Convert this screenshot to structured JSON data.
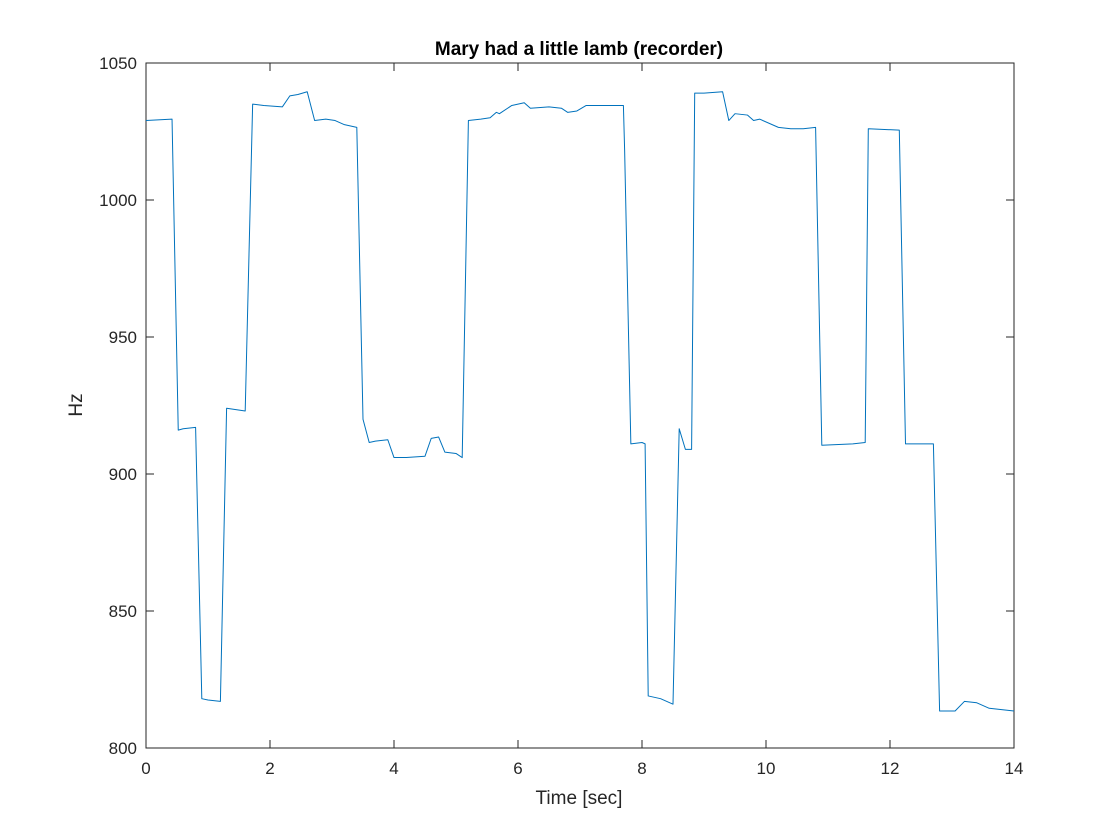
{
  "chart_data": {
    "type": "line",
    "title": "Mary had a little lamb (recorder)",
    "xlabel": "Time [sec]",
    "ylabel": "Hz",
    "xlim": [
      0,
      14
    ],
    "ylim": [
      800,
      1050
    ],
    "xticks": [
      0,
      2,
      4,
      6,
      8,
      10,
      12,
      14
    ],
    "yticks": [
      800,
      850,
      900,
      950,
      1000,
      1050
    ],
    "grid": false,
    "line_color": "#0072BD",
    "series": [
      {
        "x": [
          0,
          0.42,
          0.52,
          0.6,
          0.8,
          0.9,
          1.0,
          1.2,
          1.3,
          1.45,
          1.6,
          1.72,
          1.9,
          2.2,
          2.32,
          2.45,
          2.6,
          2.72,
          2.9,
          3.05,
          3.2,
          3.4,
          3.5,
          3.6,
          3.7,
          3.9,
          4.0,
          4.2,
          4.5,
          4.6,
          4.72,
          4.82,
          5.0,
          5.1,
          5.2,
          5.4,
          5.55,
          5.65,
          5.7,
          5.9,
          6.1,
          6.2,
          6.5,
          6.7,
          6.8,
          6.95,
          7.1,
          7.7,
          7.72,
          7.82,
          8.0,
          8.05,
          8.1,
          8.2,
          8.3,
          8.5,
          8.6,
          8.7,
          8.8,
          8.85,
          9.0,
          9.3,
          9.4,
          9.5,
          9.7,
          9.8,
          9.9,
          10.2,
          10.4,
          10.6,
          10.8,
          10.9,
          11.4,
          11.6,
          11.65,
          12.15,
          12.25,
          12.6,
          12.7,
          12.8,
          13.05,
          13.2,
          13.4,
          13.6,
          14.0
        ],
        "y": [
          1029,
          1029.5,
          916,
          916.5,
          917,
          818,
          817.5,
          817,
          924,
          923.5,
          923,
          1035,
          1034.5,
          1034,
          1038,
          1038.5,
          1039.5,
          1029,
          1029.5,
          1029,
          1027.5,
          1026.5,
          920,
          911.5,
          912,
          912.5,
          906,
          906,
          906.5,
          913,
          913.5,
          908,
          907.5,
          906,
          1029,
          1029.5,
          1030,
          1032,
          1031.5,
          1034.5,
          1035.5,
          1033.5,
          1034,
          1033.5,
          1032,
          1032.5,
          1034.5,
          1034.5,
          1018,
          911,
          911.5,
          911,
          819,
          818.5,
          818,
          816,
          916.5,
          909,
          909,
          1039,
          1039,
          1039.5,
          1029,
          1031.5,
          1031,
          1029,
          1029.5,
          1026.5,
          1026,
          1026,
          1026.5,
          910.5,
          911,
          911.5,
          1026,
          1025.5,
          911,
          911,
          911,
          813.5,
          813.5,
          817,
          816.5,
          814.5,
          813.5
        ]
      }
    ]
  }
}
